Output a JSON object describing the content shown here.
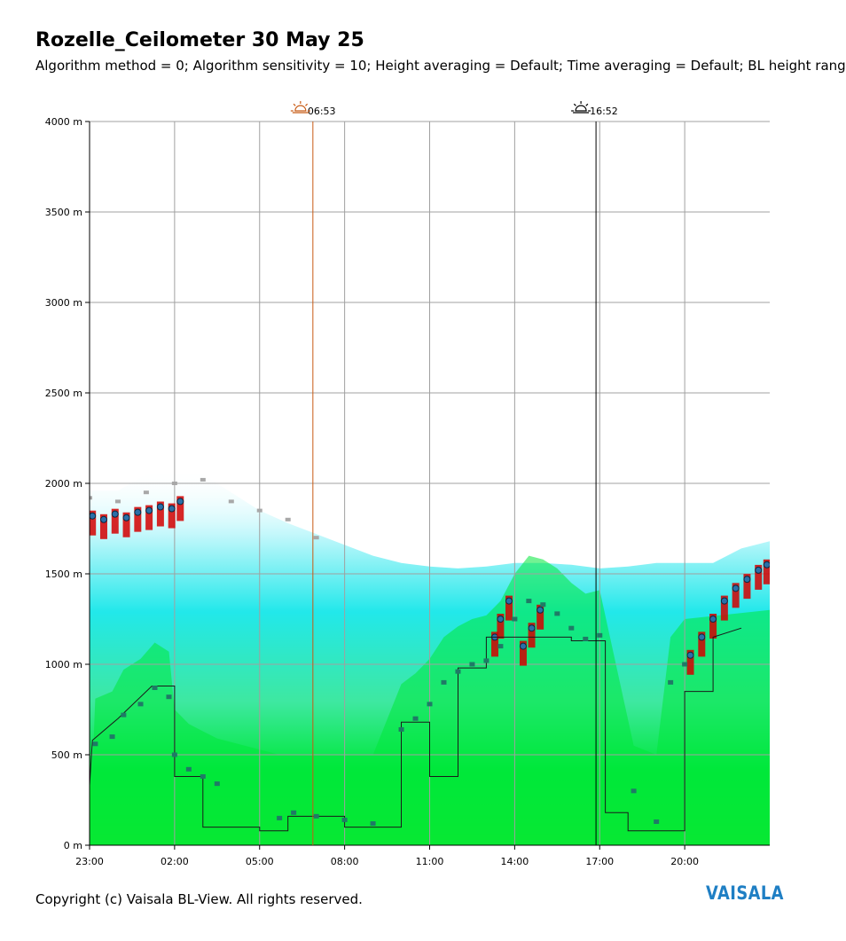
{
  "header": {
    "title": "Rozelle_Ceilometer 30 May 25",
    "subtitle": "Algorithm method = 0; Algorithm sensitivity = 10; Height averaging = Default; Time averaging = Default; BL height rang"
  },
  "footer": {
    "copyright": "Copyright (c) Vaisala BL-View. All rights reserved.",
    "logo": "VAISALA"
  },
  "chart_data": {
    "type": "heatmap",
    "title": "Rozelle_Ceilometer 30 May 25",
    "xlabel": "",
    "ylabel": "",
    "x_range_hours": [
      23,
      47
    ],
    "ylim": [
      0,
      4000
    ],
    "x_ticks": [
      "23:00",
      "02:00",
      "05:00",
      "08:00",
      "11:00",
      "14:00",
      "17:00",
      "20:00"
    ],
    "y_ticks": [
      "0 m",
      "500 m",
      "1000 m",
      "1500 m",
      "2000 m",
      "2500 m",
      "3000 m",
      "3500 m",
      "4000 m"
    ],
    "y_tick_values": [
      0,
      500,
      1000,
      1500,
      2000,
      2500,
      3000,
      3500,
      4000
    ],
    "grid": true,
    "sunrise": {
      "label": "06:53",
      "hour": 30.88
    },
    "sunset": {
      "label": "16:52",
      "hour": 40.87
    },
    "colors": {
      "low_backscatter": "#00e83a",
      "mid_backscatter": "#22e8ea",
      "high_backscatter": "#d40000",
      "bl_height": "#1f7a66",
      "residual_layer": "#a8a8a8",
      "sunrise_line": "#c85a14",
      "sunset_line": "#000000"
    },
    "aerosol_top": [
      {
        "h": 23.0,
        "m": 1960
      },
      {
        "h": 24.0,
        "m": 1960
      },
      {
        "h": 25.0,
        "m": 2050
      },
      {
        "h": 26.0,
        "m": 2080
      },
      {
        "h": 27.0,
        "m": 2050
      },
      {
        "h": 28.0,
        "m": 1950
      },
      {
        "h": 29.0,
        "m": 1850
      },
      {
        "h": 30.0,
        "m": 1780
      },
      {
        "h": 31.0,
        "m": 1720
      },
      {
        "h": 32.0,
        "m": 1660
      },
      {
        "h": 33.0,
        "m": 1600
      },
      {
        "h": 34.0,
        "m": 1560
      },
      {
        "h": 35.0,
        "m": 1540
      },
      {
        "h": 36.0,
        "m": 1530
      },
      {
        "h": 37.0,
        "m": 1540
      },
      {
        "h": 38.0,
        "m": 1560
      },
      {
        "h": 39.0,
        "m": 1560
      },
      {
        "h": 40.0,
        "m": 1550
      },
      {
        "h": 41.0,
        "m": 1530
      },
      {
        "h": 42.0,
        "m": 1540
      },
      {
        "h": 43.0,
        "m": 1560
      },
      {
        "h": 44.0,
        "m": 1560
      },
      {
        "h": 45.0,
        "m": 1560
      },
      {
        "h": 46.0,
        "m": 1640
      },
      {
        "h": 47.0,
        "m": 1680
      }
    ],
    "bl_height_step": [
      {
        "h": 23.0,
        "m": 330
      },
      {
        "h": 23.1,
        "m": 580
      },
      {
        "h": 24.0,
        "m": 700
      },
      {
        "h": 25.2,
        "m": 880
      },
      {
        "h": 26.0,
        "m": 880
      },
      {
        "h": 26.0,
        "m": 380
      },
      {
        "h": 27.0,
        "m": 380
      },
      {
        "h": 27.0,
        "m": 100
      },
      {
        "h": 29.0,
        "m": 100
      },
      {
        "h": 29.0,
        "m": 80
      },
      {
        "h": 30.0,
        "m": 80
      },
      {
        "h": 30.0,
        "m": 160
      },
      {
        "h": 32.0,
        "m": 160
      },
      {
        "h": 32.0,
        "m": 100
      },
      {
        "h": 34.0,
        "m": 100
      },
      {
        "h": 34.0,
        "m": 680
      },
      {
        "h": 35.0,
        "m": 680
      },
      {
        "h": 35.0,
        "m": 380
      },
      {
        "h": 36.0,
        "m": 380
      },
      {
        "h": 36.0,
        "m": 980
      },
      {
        "h": 37.0,
        "m": 980
      },
      {
        "h": 37.0,
        "m": 1150
      },
      {
        "h": 40.0,
        "m": 1150
      },
      {
        "h": 40.0,
        "m": 1130
      },
      {
        "h": 41.0,
        "m": 1130
      },
      {
        "h": 41.2,
        "m": 1130
      },
      {
        "h": 41.2,
        "m": 180
      },
      {
        "h": 42.0,
        "m": 180
      },
      {
        "h": 42.0,
        "m": 80
      },
      {
        "h": 44.0,
        "m": 80
      },
      {
        "h": 44.0,
        "m": 850
      },
      {
        "h": 45.0,
        "m": 850
      },
      {
        "h": 45.0,
        "m": 1150
      },
      {
        "h": 46.0,
        "m": 1200
      }
    ],
    "bl_height_points": [
      {
        "h": 23.2,
        "m": 560
      },
      {
        "h": 23.8,
        "m": 600
      },
      {
        "h": 24.2,
        "m": 720
      },
      {
        "h": 24.8,
        "m": 780
      },
      {
        "h": 25.3,
        "m": 870
      },
      {
        "h": 25.8,
        "m": 820
      },
      {
        "h": 26.0,
        "m": 500
      },
      {
        "h": 26.5,
        "m": 420
      },
      {
        "h": 27.0,
        "m": 380
      },
      {
        "h": 27.5,
        "m": 340
      },
      {
        "h": 29.7,
        "m": 150
      },
      {
        "h": 30.2,
        "m": 180
      },
      {
        "h": 31.0,
        "m": 160
      },
      {
        "h": 32.0,
        "m": 140
      },
      {
        "h": 33.0,
        "m": 120
      },
      {
        "h": 34.0,
        "m": 640
      },
      {
        "h": 34.5,
        "m": 700
      },
      {
        "h": 35.0,
        "m": 780
      },
      {
        "h": 35.5,
        "m": 900
      },
      {
        "h": 36.0,
        "m": 960
      },
      {
        "h": 36.5,
        "m": 1000
      },
      {
        "h": 37.0,
        "m": 1020
      },
      {
        "h": 37.5,
        "m": 1100
      },
      {
        "h": 38.0,
        "m": 1250
      },
      {
        "h": 38.5,
        "m": 1350
      },
      {
        "h": 39.0,
        "m": 1330
      },
      {
        "h": 39.5,
        "m": 1280
      },
      {
        "h": 40.0,
        "m": 1200
      },
      {
        "h": 40.5,
        "m": 1140
      },
      {
        "h": 41.0,
        "m": 1160
      },
      {
        "h": 42.2,
        "m": 300
      },
      {
        "h": 43.0,
        "m": 130
      },
      {
        "h": 43.5,
        "m": 900
      },
      {
        "h": 44.0,
        "m": 1000
      }
    ],
    "residual_layer": [
      {
        "h": 23.0,
        "m": 1920
      },
      {
        "h": 24.0,
        "m": 1900
      },
      {
        "h": 25.0,
        "m": 1950
      },
      {
        "h": 26.0,
        "m": 2000
      },
      {
        "h": 27.0,
        "m": 2020
      },
      {
        "h": 28.0,
        "m": 1900
      },
      {
        "h": 29.0,
        "m": 1850
      },
      {
        "h": 30.0,
        "m": 1800
      },
      {
        "h": 31.0,
        "m": 1700
      }
    ],
    "cloud_hits": [
      {
        "h": 23.1,
        "m": 1820
      },
      {
        "h": 23.5,
        "m": 1800
      },
      {
        "h": 23.9,
        "m": 1830
      },
      {
        "h": 24.3,
        "m": 1810
      },
      {
        "h": 24.7,
        "m": 1840
      },
      {
        "h": 25.1,
        "m": 1850
      },
      {
        "h": 25.5,
        "m": 1870
      },
      {
        "h": 25.9,
        "m": 1860
      },
      {
        "h": 26.2,
        "m": 1900
      },
      {
        "h": 37.3,
        "m": 1150
      },
      {
        "h": 37.5,
        "m": 1250
      },
      {
        "h": 37.8,
        "m": 1350
      },
      {
        "h": 38.3,
        "m": 1100
      },
      {
        "h": 38.6,
        "m": 1200
      },
      {
        "h": 38.9,
        "m": 1300
      },
      {
        "h": 44.2,
        "m": 1050
      },
      {
        "h": 44.6,
        "m": 1150
      },
      {
        "h": 45.0,
        "m": 1250
      },
      {
        "h": 45.4,
        "m": 1350
      },
      {
        "h": 45.8,
        "m": 1420
      },
      {
        "h": 46.2,
        "m": 1470
      },
      {
        "h": 46.6,
        "m": 1520
      },
      {
        "h": 46.9,
        "m": 1550
      }
    ]
  }
}
